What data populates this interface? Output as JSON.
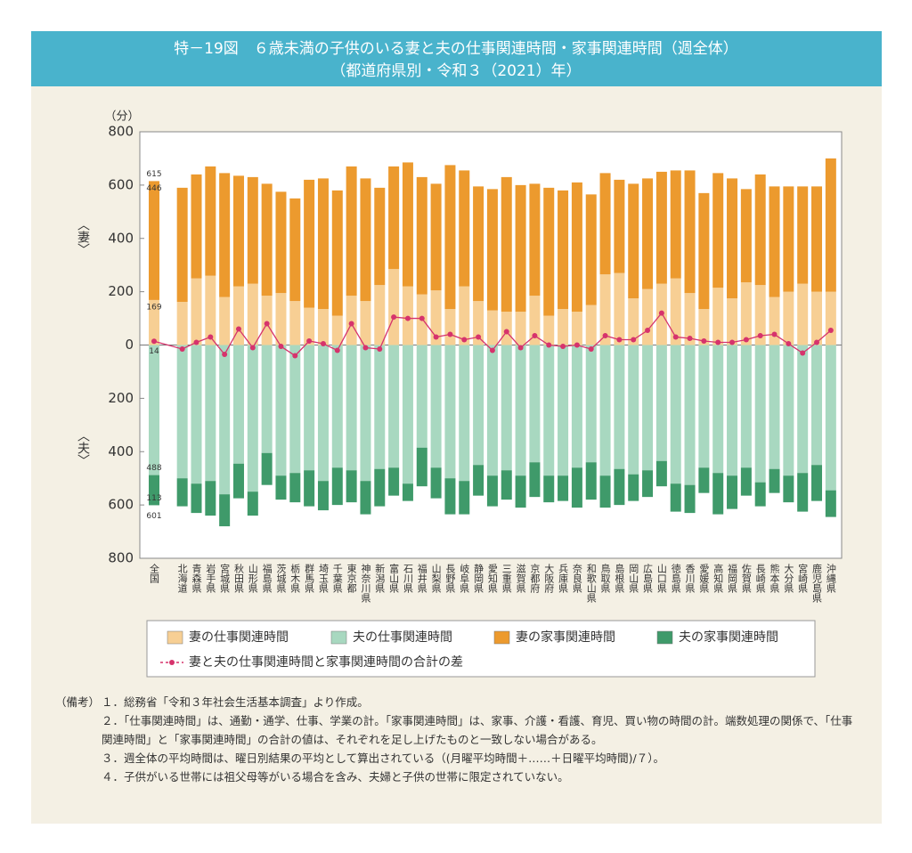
{
  "chart_data": {
    "type": "bar",
    "title": "特－19図　６歳未満の子供のいる妻と夫の仕事関連時間・家事関連時間（週全体）",
    "subtitle": "（都道府県別・令和３（2021）年）",
    "y_unit": "（分）",
    "y_label_top": "〈妻〉",
    "y_label_bottom": "〈夫〉",
    "categories": [
      "全国",
      "北海道",
      "青森県",
      "岩手県",
      "宮城県",
      "秋田県",
      "山形県",
      "福島県",
      "茨城県",
      "栃木県",
      "群馬県",
      "埼玉県",
      "千葉県",
      "東京都",
      "神奈川県",
      "新潟県",
      "富山県",
      "石川県",
      "福井県",
      "山梨県",
      "長野県",
      "岐阜県",
      "静岡県",
      "愛知県",
      "三重県",
      "滋賀県",
      "京都府",
      "大阪府",
      "兵庫県",
      "奈良県",
      "和歌山県",
      "鳥取県",
      "島根県",
      "岡山県",
      "広島県",
      "山口県",
      "徳島県",
      "香川県",
      "愛媛県",
      "高知県",
      "福岡県",
      "佐賀県",
      "長崎県",
      "熊本県",
      "大分県",
      "宮崎県",
      "鹿児島県",
      "沖縄県"
    ],
    "series": [
      {
        "name": "妻の仕事関連時間",
        "color": "#f7cf94",
        "values": [
          169,
          162,
          250,
          260,
          180,
          220,
          230,
          185,
          195,
          165,
          140,
          135,
          110,
          185,
          165,
          225,
          285,
          220,
          190,
          205,
          135,
          220,
          165,
          130,
          125,
          125,
          185,
          110,
          135,
          125,
          150,
          265,
          270,
          175,
          210,
          230,
          250,
          195,
          135,
          215,
          175,
          235,
          225,
          180,
          200,
          230,
          200,
          200
        ],
        "value_labels": [
          "169",
          null,
          null,
          null,
          null,
          null,
          null,
          null,
          null,
          null,
          null,
          null,
          null,
          null,
          null,
          null,
          null,
          null,
          null,
          null,
          null,
          null,
          null,
          null,
          null,
          null,
          null,
          null,
          null,
          null,
          null,
          null,
          null,
          null,
          null,
          null,
          null,
          null,
          null,
          null,
          null,
          null,
          null,
          null,
          null,
          null,
          null,
          null
        ]
      },
      {
        "name": "夫の仕事関連時間",
        "color": "#a8d8c0",
        "values": [
          -488,
          -500,
          -520,
          -510,
          -560,
          -445,
          -550,
          -405,
          -490,
          -480,
          -470,
          -510,
          -460,
          -470,
          -510,
          -465,
          -460,
          -520,
          -385,
          -460,
          -500,
          -510,
          -450,
          -490,
          -470,
          -490,
          -440,
          -490,
          -490,
          -460,
          -440,
          -490,
          -465,
          -485,
          -470,
          -435,
          -520,
          -525,
          -460,
          -480,
          -490,
          -460,
          -515,
          -465,
          -490,
          -480,
          -450,
          -545
        ],
        "value_labels": [
          "488",
          null,
          null,
          null,
          null,
          null,
          null,
          null,
          null,
          null,
          null,
          null,
          null,
          null,
          null,
          null,
          null,
          null,
          null,
          null,
          null,
          null,
          null,
          null,
          null,
          null,
          null,
          null,
          null,
          null,
          null,
          null,
          null,
          null,
          null,
          null,
          null,
          null,
          null,
          null,
          null,
          null,
          null,
          null,
          null,
          null,
          null,
          null
        ]
      },
      {
        "name": "妻の家事関連時間",
        "color": "#ec9a2e",
        "values": [
          446,
          428,
          390,
          410,
          465,
          415,
          400,
          420,
          380,
          385,
          480,
          490,
          470,
          485,
          460,
          365,
          385,
          465,
          440,
          400,
          540,
          435,
          430,
          455,
          505,
          475,
          420,
          480,
          445,
          485,
          415,
          380,
          350,
          430,
          415,
          420,
          405,
          460,
          435,
          430,
          450,
          350,
          415,
          415,
          395,
          365,
          395,
          500
        ],
        "value_labels": [
          "446",
          null,
          null,
          null,
          null,
          null,
          null,
          null,
          null,
          null,
          null,
          null,
          null,
          null,
          null,
          null,
          null,
          null,
          null,
          null,
          null,
          null,
          null,
          null,
          null,
          null,
          null,
          null,
          null,
          null,
          null,
          null,
          null,
          null,
          null,
          null,
          null,
          null,
          null,
          null,
          null,
          null,
          null,
          null,
          null,
          null,
          null,
          null
        ]
      },
      {
        "name": "夫の家事関連時間",
        "color": "#3f9a6a",
        "values": [
          -113,
          -105,
          -110,
          -130,
          -120,
          -130,
          -90,
          -120,
          -90,
          -110,
          -135,
          -110,
          -140,
          -120,
          -125,
          -140,
          -105,
          -65,
          -145,
          -115,
          -135,
          -125,
          -115,
          -115,
          -110,
          -120,
          -130,
          -100,
          -95,
          -150,
          -140,
          -120,
          -135,
          -100,
          -100,
          -95,
          -105,
          -105,
          -95,
          -155,
          -125,
          -105,
          -90,
          -90,
          -100,
          -145,
          -135,
          -100
        ],
        "value_labels": [
          "113",
          null,
          null,
          null,
          null,
          null,
          null,
          null,
          null,
          null,
          null,
          null,
          null,
          null,
          null,
          null,
          null,
          null,
          null,
          null,
          null,
          null,
          null,
          null,
          null,
          null,
          null,
          null,
          null,
          null,
          null,
          null,
          null,
          null,
          null,
          null,
          null,
          null,
          null,
          null,
          null,
          null,
          null,
          null,
          null,
          null,
          null,
          null
        ]
      },
      {
        "name": "妻と夫の仕事関連時間と家事関連時間の合計の差",
        "color": "#d6336c",
        "type": "line",
        "values": [
          14,
          -15,
          10,
          30,
          -35,
          60,
          -10,
          80,
          -5,
          -40,
          15,
          5,
          -20,
          80,
          -10,
          -15,
          105,
          100,
          100,
          30,
          40,
          20,
          30,
          -20,
          50,
          -10,
          35,
          0,
          -5,
          0,
          -15,
          35,
          20,
          20,
          55,
          120,
          30,
          25,
          15,
          10,
          10,
          20,
          35,
          40,
          5,
          -30,
          10,
          55
        ],
        "value_labels": [
          "14",
          null,
          null,
          null,
          null,
          null,
          null,
          null,
          null,
          null,
          null,
          null,
          null,
          null,
          null,
          null,
          null,
          null,
          null,
          null,
          null,
          null,
          null,
          null,
          null,
          null,
          null,
          null,
          null,
          null,
          null,
          null,
          null,
          null,
          null,
          null,
          null,
          null,
          null,
          null,
          null,
          null,
          null,
          null,
          null,
          null,
          null,
          null
        ]
      }
    ],
    "total_labels": [
      {
        "text": "615",
        "value": 615
      },
      {
        "text": "601",
        "value": -601
      }
    ],
    "ylim": [
      -800,
      800
    ],
    "yticks": [
      {
        "value": -800,
        "label": "800"
      },
      {
        "value": -600,
        "label": "600"
      },
      {
        "value": -400,
        "label": "400"
      },
      {
        "value": -200,
        "label": "200"
      },
      0,
      200,
      400,
      600,
      800
    ]
  },
  "notes": {
    "label": "（備考）",
    "items": [
      "１．総務省「令和３年社会生活基本調査」より作成。",
      "２．「仕事関連時間」は、通勤・通学、仕事、学業の計。「家事関連時間」は、家事、介護・看護、育児、買い物の時間の計。端数処理の関係で、「仕事関連時間」と「家事関連時間」の合計の値は、それぞれを足し上げたものと一致しない場合がある。",
      "３．週全体の平均時間は、曜日別結果の平均として算出されている（(月曜平均時間＋……＋日曜平均時間)/７）。",
      "４．子供がいる世帯には祖父母等がいる場合を含み、夫婦と子供の世帯に限定されていない。"
    ]
  }
}
